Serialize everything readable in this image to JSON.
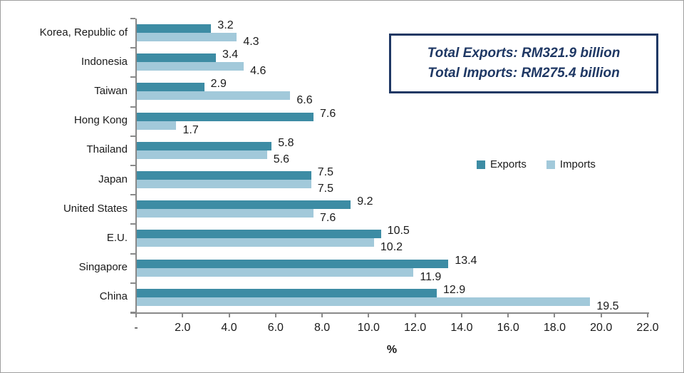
{
  "chart_data": {
    "type": "bar",
    "orientation": "horizontal",
    "categories": [
      "Korea, Republic of",
      "Indonesia",
      "Taiwan",
      "Hong Kong",
      "Thailand",
      "Japan",
      "United States",
      "E.U.",
      "Singapore",
      "China"
    ],
    "series": [
      {
        "name": "Exports",
        "color": "#3d8ca4",
        "values": [
          3.2,
          3.4,
          2.9,
          7.6,
          5.8,
          7.5,
          9.2,
          10.5,
          13.4,
          12.9
        ]
      },
      {
        "name": "Imports",
        "color": "#a2c9da",
        "values": [
          4.3,
          4.6,
          6.6,
          1.7,
          5.6,
          7.5,
          7.6,
          10.2,
          11.9,
          19.5
        ]
      }
    ],
    "xlabel": "%",
    "x_ticks": [
      "-",
      "2.0",
      "4.0",
      "6.0",
      "8.0",
      "10.0",
      "12.0",
      "14.0",
      "16.0",
      "18.0",
      "20.0",
      "22.0"
    ],
    "xlim": [
      0,
      22
    ],
    "grid": false,
    "legend_position": "middle-right",
    "value_labels": "outside-end, one decimal"
  },
  "annotation_box": {
    "line1": "Total Exports: RM321.9 billion",
    "line2": "Total Imports: RM275.4 billion",
    "border_color": "#1f3864",
    "text_color": "#1f3864"
  },
  "legend": {
    "items": [
      {
        "label": "Exports",
        "color": "#3d8ca4"
      },
      {
        "label": "Imports",
        "color": "#a2c9da"
      }
    ]
  },
  "colors": {
    "exports_bar": "#3d8ca4",
    "imports_bar": "#a2c9da",
    "axis": "#898989",
    "text": "#1a1a1a",
    "navy": "#1f3864"
  }
}
